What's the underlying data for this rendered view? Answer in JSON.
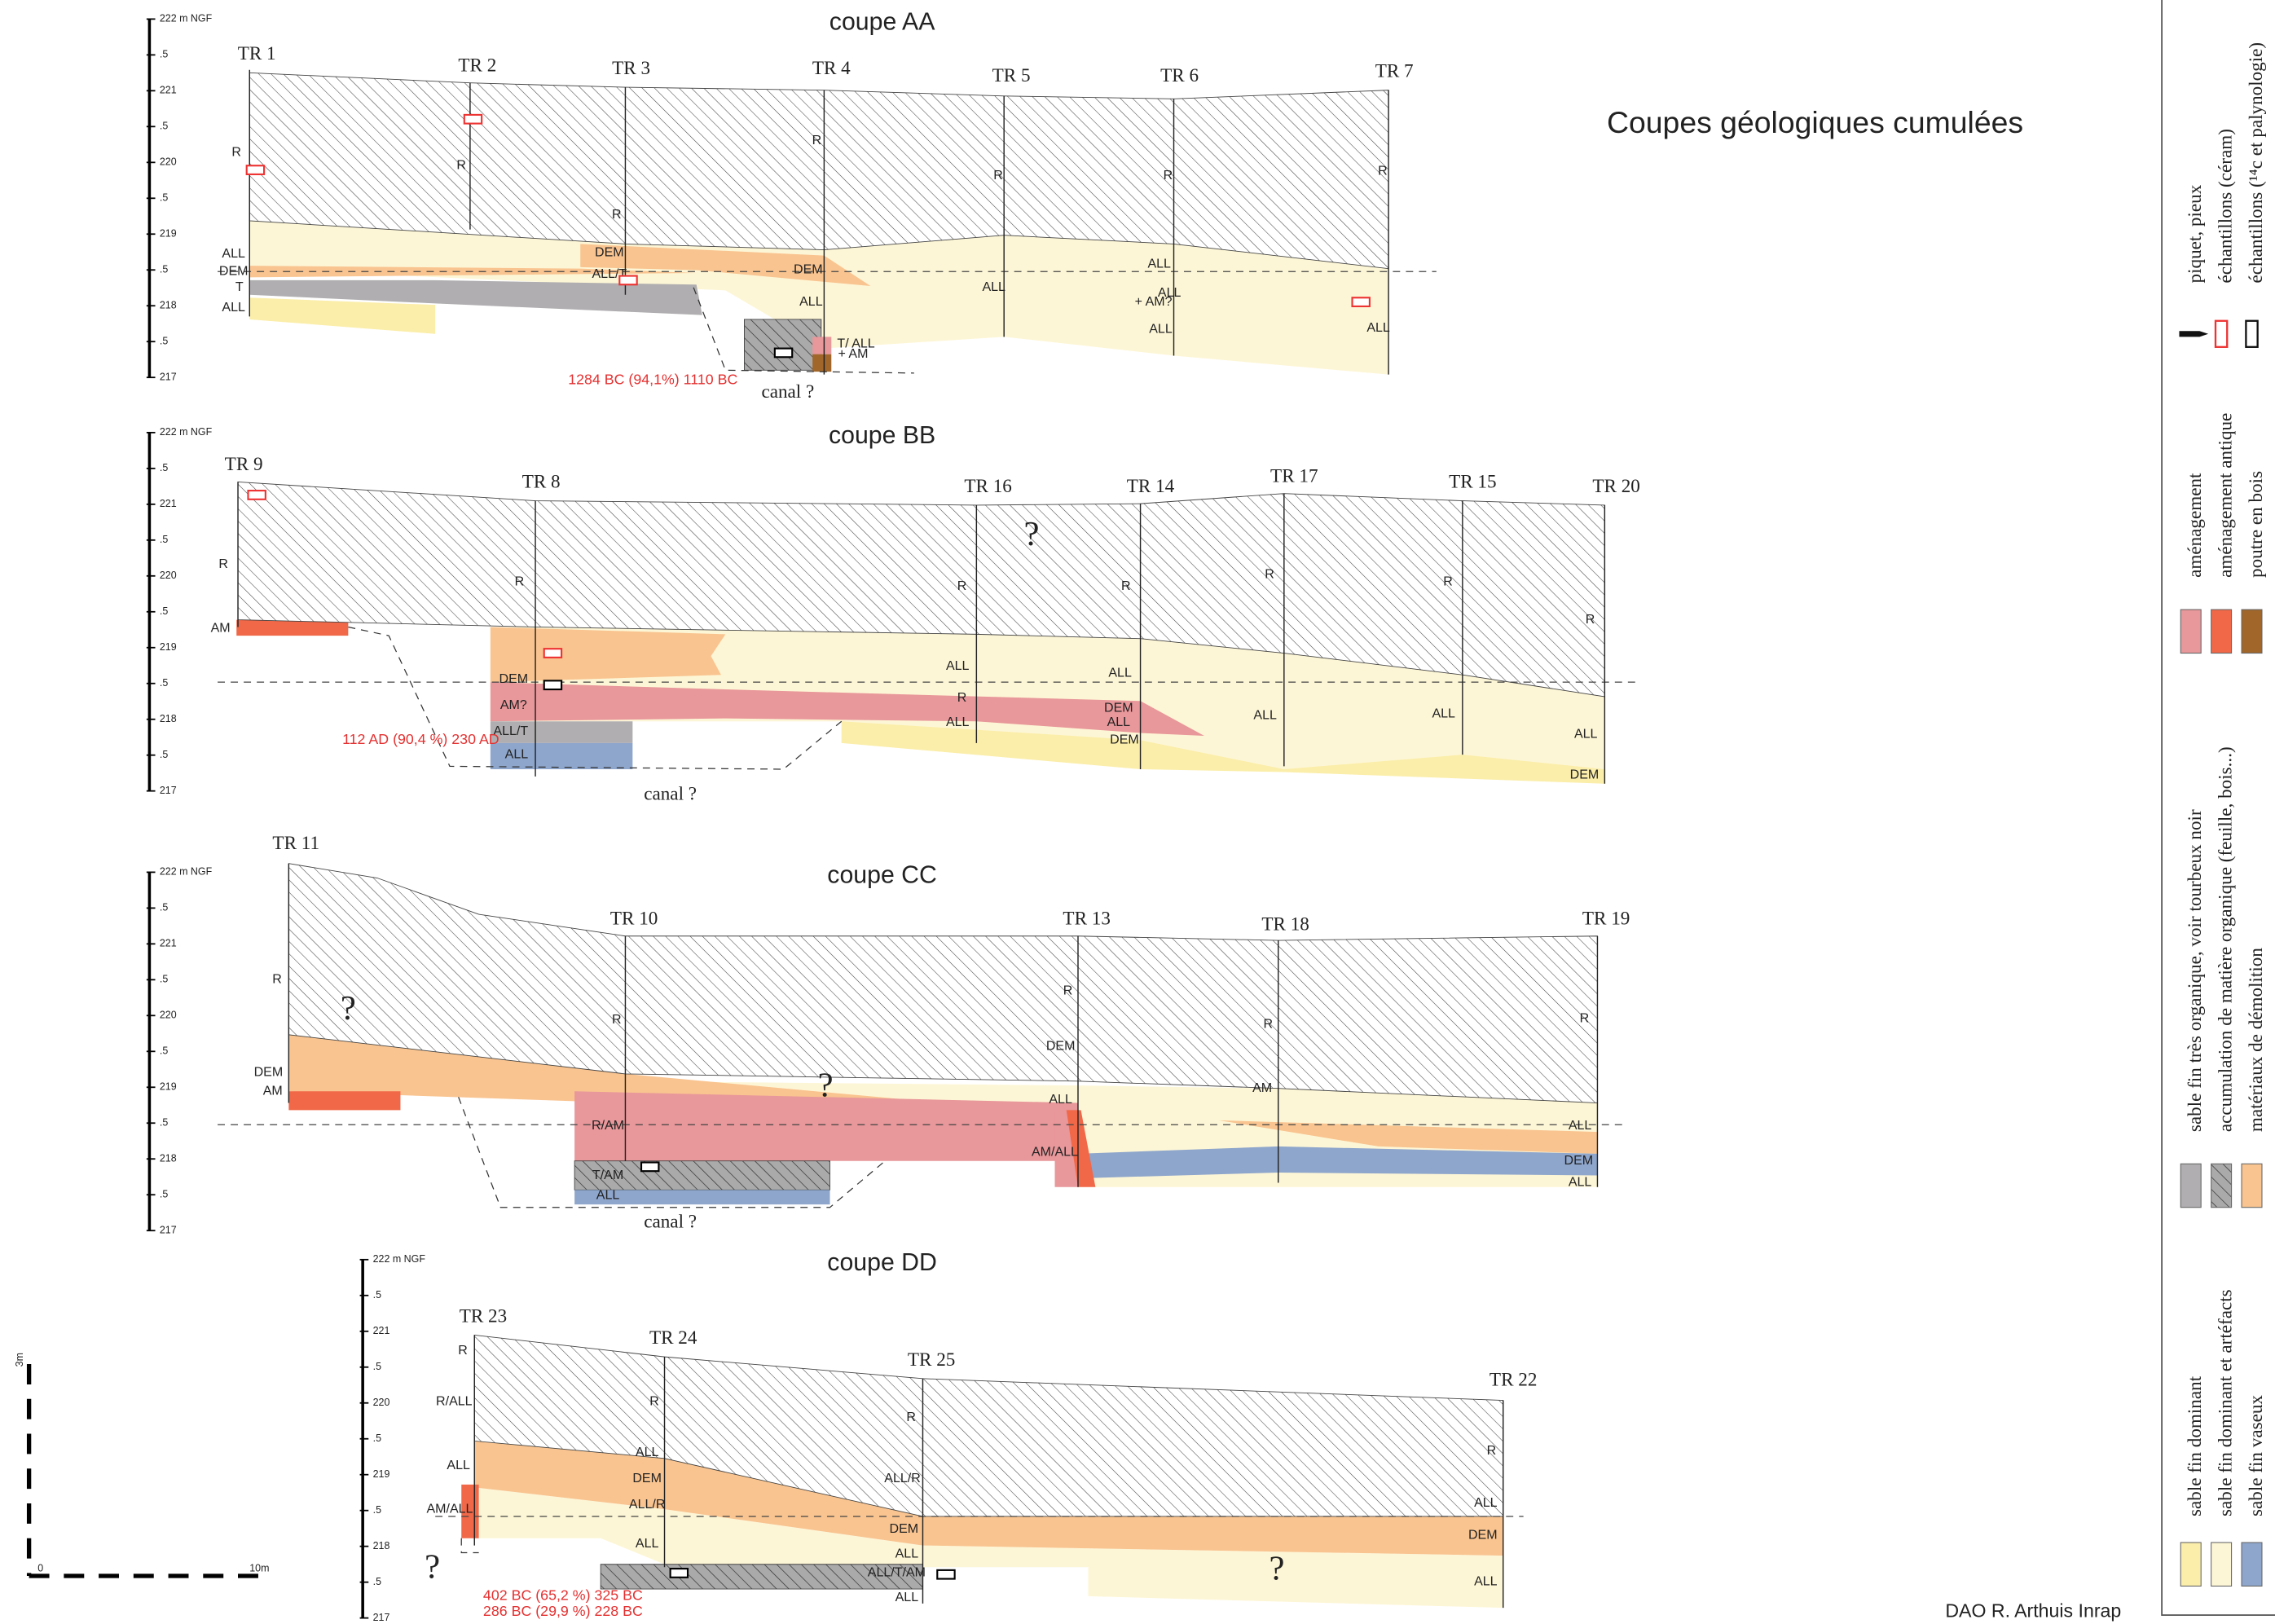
{
  "title": "Coupes géologiques cumulées",
  "credit": "DAO R. Arthuis Inrap",
  "depth_scale": [
    "222 m NGF",
    ".5",
    "221",
    ".5",
    "220",
    ".5",
    "219",
    ".5",
    "218",
    ".5",
    "217"
  ],
  "scale_bar": {
    "top": "3m",
    "zero": "0",
    "end": "10m"
  },
  "sections": [
    {
      "title": "coupe AA",
      "trenches": [
        "TR 1",
        "TR 2",
        "TR 3",
        "TR 4",
        "TR 5",
        "TR 6",
        "TR 7"
      ],
      "labels": [
        "R",
        "R",
        "R",
        "R",
        "R",
        "R",
        "R",
        "ALL",
        "DEM",
        "T",
        "ALL",
        "DEM",
        "ALL/T",
        "DEM",
        "ALL",
        "ALL",
        "ALL",
        "ALL",
        "+ AM?",
        "ALL",
        "ALL",
        "T/ ALL",
        "+ AM"
      ],
      "notes": [
        "1284 BC (94,1%) 1110 BC",
        "canal ?"
      ]
    },
    {
      "title": "coupe BB",
      "trenches": [
        "TR 9",
        "TR 8",
        "TR 16",
        "TR 14",
        "TR 17",
        "TR 15",
        "TR 20"
      ],
      "labels": [
        "R",
        "AM",
        "R",
        "R",
        "R",
        "R",
        "R",
        "R",
        "DEM",
        "AM?",
        "ALL/T",
        "ALL",
        "ALL",
        "R",
        "ALL",
        "ALL",
        "DEM",
        "ALL",
        "DEM",
        "ALL",
        "ALL",
        "ALL",
        "DEM"
      ],
      "notes": [
        "112 AD (90,4 %) 230 AD",
        "canal ?",
        "?"
      ]
    },
    {
      "title": "coupe CC",
      "trenches": [
        "TR 11",
        "TR 10",
        "TR 13",
        "TR 18",
        "TR 19"
      ],
      "labels": [
        "R",
        "DEM",
        "AM",
        "R",
        "R",
        "DEM",
        "ALL",
        "R/AM",
        "T/AM",
        "ALL",
        "AM/ALL",
        "R",
        "AM",
        "R",
        "ALL",
        "DEM",
        "ALL"
      ],
      "notes": [
        "?",
        "?",
        "canal ?"
      ]
    },
    {
      "title": "coupe DD",
      "trenches": [
        "TR 23",
        "TR 24",
        "TR 25",
        "TR 22"
      ],
      "labels": [
        "R",
        "R/ALL",
        "ALL",
        "AM/ALL",
        "R",
        "ALL",
        "DEM",
        "ALL/R",
        "ALL",
        "R",
        "ALL/R",
        "DEM",
        "ALL",
        "ALL/T/AM",
        "ALL",
        "R",
        "ALL",
        "DEM",
        "ALL"
      ],
      "notes": [
        "?",
        "?",
        "402 BC (65,2 %) 325 BC",
        "286 BC (29,9 %) 228 BC"
      ]
    }
  ],
  "legend": [
    [
      "sable fin dominant",
      "sable fin dominant et artéfacts",
      "sable fin vaseux"
    ],
    [
      "sable fin très organique, voir tourbeux noir",
      "accumulation de matière organique (feuille, bois...)",
      "matériaux de démolition"
    ],
    [
      "aménagement",
      "aménagement antique",
      "poutre en bois"
    ],
    [
      "piquet, pieux",
      "échantillons (céram)",
      "échantillons (¹⁴c et palynologie)"
    ]
  ]
}
